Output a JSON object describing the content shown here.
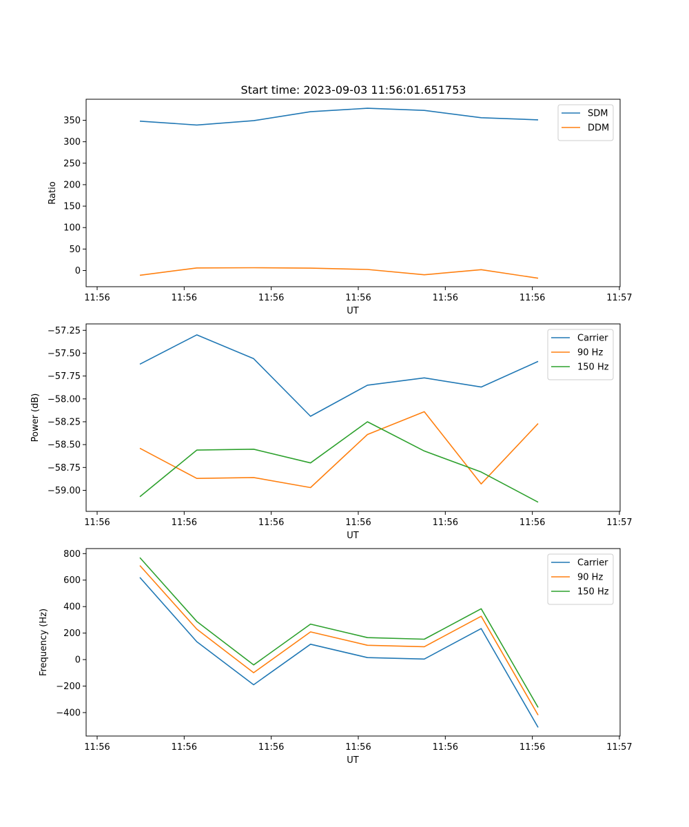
{
  "chart_data": [
    {
      "type": "line",
      "title": "Start time: 2023-09-03 11:56:01.651753",
      "xlabel": "UT",
      "ylabel": "Ratio",
      "xticks": [
        "11:56",
        "11:56",
        "11:56",
        "11:56",
        "11:56",
        "11:56",
        "11:57"
      ],
      "yticks": [
        "0",
        "50",
        "100",
        "150",
        "200",
        "250",
        "300",
        "350"
      ],
      "ylim": [
        -37.7,
        399
      ],
      "legend": "top-right",
      "series": [
        {
          "name": "SDM",
          "color": "#1f77b4",
          "values": [
            348,
            339,
            349,
            370,
            378,
            373,
            356,
            351
          ]
        },
        {
          "name": "DDM",
          "color": "#ff7f0e",
          "values": [
            -11,
            6,
            6.5,
            5.5,
            2.5,
            -10,
            2,
            -18
          ]
        }
      ]
    },
    {
      "type": "line",
      "title": "",
      "xlabel": "UT",
      "ylabel": "Power (dB)",
      "xticks": [
        "11:56",
        "11:56",
        "11:56",
        "11:56",
        "11:56",
        "11:56",
        "11:57"
      ],
      "yticks": [
        "−57.25",
        "−57.50",
        "−57.75",
        "−58.00",
        "−58.25",
        "−58.50",
        "−58.75",
        "−59.00"
      ],
      "ylim": [
        -59.23,
        -57.18
      ],
      "legend": "top-right",
      "series": [
        {
          "name": "Carrier",
          "color": "#1f77b4",
          "values": [
            -57.62,
            -57.3,
            -57.56,
            -58.19,
            -57.85,
            -57.77,
            -57.87,
            -57.59
          ]
        },
        {
          "name": "90 Hz",
          "color": "#ff7f0e",
          "values": [
            -58.54,
            -58.87,
            -58.86,
            -58.97,
            -58.39,
            -58.14,
            -58.93,
            -58.27
          ]
        },
        {
          "name": "150 Hz",
          "color": "#2ca02c",
          "values": [
            -59.07,
            -58.56,
            -58.55,
            -58.7,
            -58.25,
            -58.57,
            -58.8,
            -59.13
          ]
        }
      ]
    },
    {
      "type": "line",
      "title": "",
      "xlabel": "UT",
      "ylabel": "Frequency (Hz)",
      "xticks": [
        "11:56",
        "11:56",
        "11:56",
        "11:56",
        "11:56",
        "11:56",
        "11:57"
      ],
      "yticks": [
        "−400",
        "−200",
        "0",
        "200",
        "400",
        "600",
        "800"
      ],
      "ylim": [
        -577,
        838
      ],
      "legend": "top-right",
      "series": [
        {
          "name": "Carrier",
          "color": "#1f77b4",
          "values": [
            620,
            135,
            -190,
            116,
            15,
            4,
            234,
            -512
          ]
        },
        {
          "name": "90 Hz",
          "color": "#ff7f0e",
          "values": [
            710,
            230,
            -99,
            209,
            108,
            97,
            327,
            -419
          ]
        },
        {
          "name": "150 Hz",
          "color": "#2ca02c",
          "values": [
            770,
            288,
            -40,
            268,
            166,
            154,
            384,
            -361
          ]
        }
      ]
    }
  ]
}
